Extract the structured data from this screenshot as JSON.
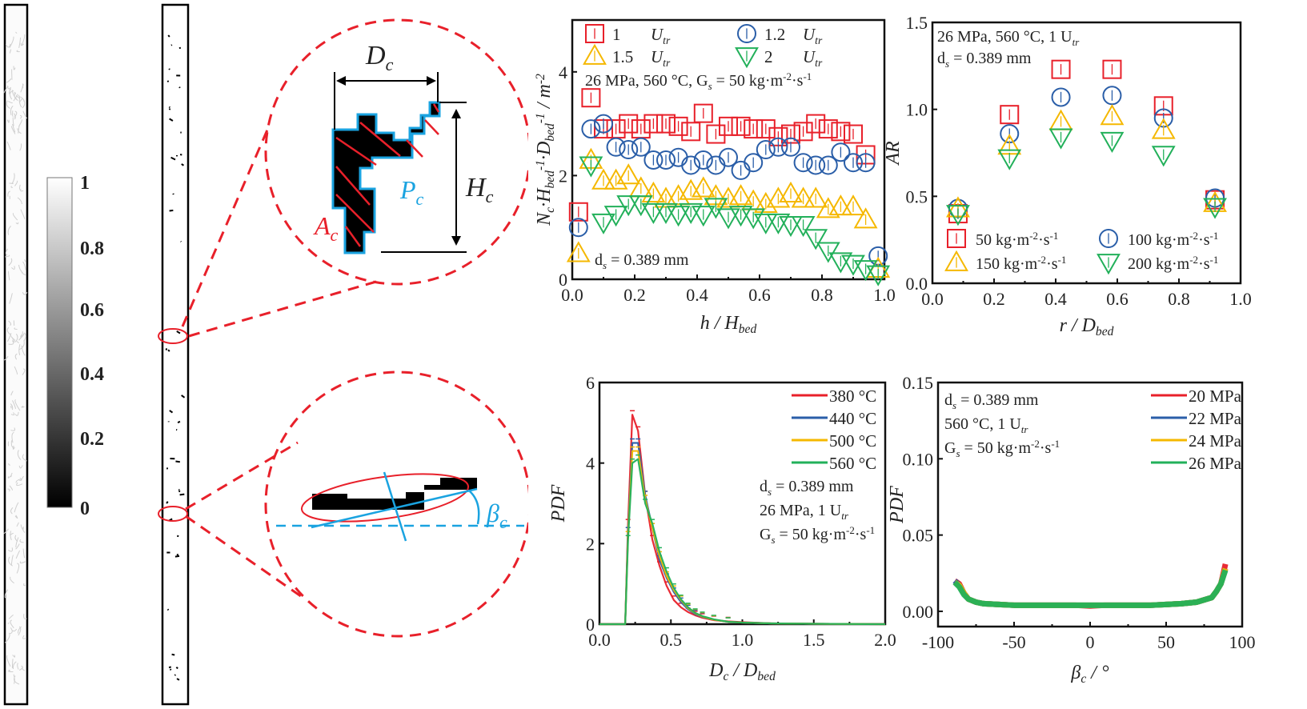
{
  "colorbar": {
    "ticks": [
      "1",
      "0.8",
      "0.6",
      "0.4",
      "0.2",
      "0"
    ],
    "range": [
      0,
      1
    ]
  },
  "schematic": {
    "top": {
      "width_label": "D",
      "width_sub": "c",
      "height_label": "H",
      "height_sub": "c",
      "perimeter_label": "P",
      "perimeter_sub": "c",
      "area_label": "A",
      "area_sub": "c"
    },
    "bottom": {
      "angle_label": "β",
      "angle_sub": "c"
    }
  },
  "colors": {
    "red": "#e8202a",
    "blue": "#2a5ea8",
    "yellow": "#f5b800",
    "green": "#22b05a",
    "cyan": "#1aa3e0"
  },
  "chart_data": [
    {
      "type": "scatter",
      "id": "nc",
      "xlabel": "h / H_bed",
      "ylabel": "N_c·H_bed^-1·D_bed^-1 / m^-2",
      "xlim": [
        0,
        1.0
      ],
      "ylim": [
        0,
        5
      ],
      "xticks": [
        "0.0",
        "0.2",
        "0.4",
        "0.6",
        "0.8",
        "1.0"
      ],
      "yticks": [
        "0",
        "2",
        "4"
      ],
      "annotations": [
        "26 MPa, 560 °C, G_s = 50 kg·m^-2·s^-1",
        "d_s = 0.389 mm"
      ],
      "legend": [
        "1  U_tr",
        "1.2  U_tr",
        "1.5  U_tr",
        "2  U_tr"
      ],
      "x": [
        0.02,
        0.06,
        0.1,
        0.14,
        0.18,
        0.22,
        0.26,
        0.3,
        0.34,
        0.38,
        0.42,
        0.46,
        0.5,
        0.54,
        0.58,
        0.62,
        0.66,
        0.7,
        0.74,
        0.78,
        0.82,
        0.86,
        0.9,
        0.94,
        0.98
      ],
      "series": [
        {
          "name": "1 U_tr",
          "marker": "square",
          "color": "red",
          "values": [
            1.3,
            3.5,
            2.9,
            2.9,
            3.0,
            2.9,
            3.0,
            3.0,
            2.95,
            2.85,
            3.2,
            2.8,
            2.95,
            2.95,
            2.9,
            2.9,
            2.75,
            2.8,
            2.85,
            3.0,
            2.9,
            2.85,
            2.8,
            2.4,
            null
          ]
        },
        {
          "name": "1.2 U_tr",
          "marker": "circle",
          "color": "blue",
          "values": [
            1.0,
            2.9,
            3.0,
            2.55,
            2.5,
            2.55,
            2.3,
            2.3,
            2.35,
            2.2,
            2.3,
            2.2,
            2.35,
            2.1,
            2.25,
            2.5,
            2.55,
            2.55,
            2.25,
            2.2,
            2.2,
            2.45,
            2.25,
            2.25,
            0.45
          ]
        },
        {
          "name": "1.5 U_tr",
          "marker": "triangle-up",
          "color": "yellow",
          "values": [
            0.5,
            2.3,
            1.9,
            1.9,
            2.0,
            1.75,
            1.65,
            1.55,
            1.6,
            1.7,
            1.75,
            1.6,
            1.55,
            1.6,
            1.5,
            1.45,
            1.55,
            1.65,
            1.55,
            1.55,
            1.35,
            1.4,
            1.4,
            1.15,
            0.2
          ]
        },
        {
          "name": "2 U_tr",
          "marker": "triangle-down",
          "color": "green",
          "values": [
            null,
            2.2,
            1.1,
            1.25,
            1.45,
            1.45,
            1.3,
            1.3,
            1.25,
            1.3,
            1.25,
            1.4,
            1.2,
            1.25,
            1.2,
            1.1,
            1.1,
            1.05,
            1.05,
            0.8,
            0.55,
            0.35,
            0.3,
            0.2,
            0.1
          ]
        }
      ]
    },
    {
      "type": "scatter",
      "id": "ar",
      "xlabel": "r / D_bed",
      "ylabel": "AR",
      "xlim": [
        0,
        1.0
      ],
      "ylim": [
        0,
        1.5
      ],
      "xticks": [
        "0.0",
        "0.2",
        "0.4",
        "0.6",
        "0.8",
        "1.0"
      ],
      "yticks": [
        "0.0",
        "0.5",
        "1.0",
        "1.5"
      ],
      "annotations": [
        "26 MPa, 560 °C, 1 U_tr",
        "d_s = 0.389 mm"
      ],
      "legend": [
        "50   kg·m^-2·s^-1",
        "100 kg·m^-2·s^-1",
        "150 kg·m^-2·s^-1",
        "200 kg·m^-2·s^-1"
      ],
      "x": [
        0.083,
        0.25,
        0.417,
        0.583,
        0.75,
        0.917
      ],
      "series": [
        {
          "name": "50 kg·m^-2·s^-1",
          "marker": "square",
          "color": "red",
          "values": [
            0.4,
            0.97,
            1.23,
            1.23,
            1.02,
            0.48
          ]
        },
        {
          "name": "100 kg·m^-2·s^-1",
          "marker": "circle",
          "color": "blue",
          "values": [
            0.43,
            0.86,
            1.07,
            1.08,
            0.95,
            0.49
          ]
        },
        {
          "name": "150 kg·m^-2·s^-1",
          "marker": "triangle-up",
          "color": "yellow",
          "values": [
            0.43,
            0.79,
            0.93,
            0.96,
            0.88,
            0.46
          ]
        },
        {
          "name": "200 kg·m^-2·s^-1",
          "marker": "triangle-down",
          "color": "green",
          "values": [
            0.4,
            0.72,
            0.84,
            0.82,
            0.74,
            0.44
          ]
        }
      ]
    },
    {
      "type": "line",
      "id": "pdfd",
      "xlabel": "D_c / D_bed",
      "ylabel": "PDF",
      "xlim": [
        0,
        2.0
      ],
      "ylim": [
        0,
        6
      ],
      "xticks": [
        "0.0",
        "0.5",
        "1.0",
        "1.5",
        "2.0"
      ],
      "yticks": [
        "0",
        "2",
        "4",
        "6"
      ],
      "annotations": [
        "d_s = 0.389 mm",
        "26 MPa, 1 U_tr",
        "G_s = 50 kg·m^-2·s^-1"
      ],
      "legend": [
        "380 °C",
        "440 °C",
        "500 °C",
        "560 °C"
      ],
      "x": [
        0,
        0.18,
        0.2,
        0.23,
        0.27,
        0.32,
        0.37,
        0.42,
        0.47,
        0.52,
        0.57,
        0.62,
        0.67,
        0.72,
        0.8,
        0.9,
        1.0,
        1.2,
        1.5,
        2.0
      ],
      "series": [
        {
          "name": "380 °C",
          "color": "red",
          "values": [
            0,
            0,
            2.5,
            5.2,
            4.8,
            3.2,
            2.1,
            1.45,
            0.95,
            0.6,
            0.42,
            0.3,
            0.22,
            0.16,
            0.1,
            0.07,
            0.05,
            0.02,
            0.01,
            0
          ]
        },
        {
          "name": "440 °C",
          "color": "blue",
          "values": [
            0,
            0,
            2.3,
            4.5,
            4.5,
            3.2,
            2.4,
            1.6,
            1.15,
            0.8,
            0.55,
            0.37,
            0.25,
            0.18,
            0.11,
            0.06,
            0.04,
            0.02,
            0.01,
            0
          ]
        },
        {
          "name": "500 °C",
          "color": "yellow",
          "values": [
            0,
            0,
            2.2,
            4.3,
            4.3,
            3.1,
            2.4,
            1.7,
            1.2,
            0.85,
            0.6,
            0.4,
            0.27,
            0.19,
            0.11,
            0.06,
            0.04,
            0.02,
            0.01,
            0
          ]
        },
        {
          "name": "560 °C",
          "color": "green",
          "values": [
            0,
            0,
            2.1,
            4.0,
            4.1,
            3.0,
            2.5,
            1.8,
            1.3,
            0.9,
            0.62,
            0.42,
            0.28,
            0.2,
            0.12,
            0.06,
            0.04,
            0.02,
            0.01,
            0
          ]
        }
      ]
    },
    {
      "type": "line",
      "id": "pdfb",
      "xlabel": "β_c / °",
      "ylabel": "PDF",
      "xlim": [
        -100,
        100
      ],
      "ylim": [
        -0.01,
        0.15
      ],
      "xticks": [
        "-100",
        "-50",
        "0",
        "50",
        "100"
      ],
      "yticks": [
        "0.00",
        "0.05",
        "0.10",
        "0.15"
      ],
      "annotations": [
        "d_s = 0.389 mm",
        "560 °C, 1 U_tr",
        "G_s = 50 kg·m^-2·s^-1"
      ],
      "legend": [
        "20 MPa",
        "22 MPa",
        "24 MPa",
        "26 MPa"
      ],
      "x": [
        -89,
        -86,
        -83,
        -80,
        -75,
        -70,
        -60,
        -50,
        -40,
        -30,
        -20,
        -10,
        0,
        10,
        20,
        30,
        40,
        50,
        60,
        70,
        75,
        80,
        83,
        86,
        89
      ],
      "series": [
        {
          "name": "20 MPa",
          "color": "red",
          "values": [
            0.02,
            0.018,
            0.012,
            0.008,
            0.006,
            0.005,
            0.0045,
            0.004,
            0.004,
            0.004,
            0.004,
            0.004,
            0.0035,
            0.004,
            0.004,
            0.004,
            0.004,
            0.0045,
            0.005,
            0.006,
            0.0075,
            0.009,
            0.013,
            0.018,
            0.031
          ]
        },
        {
          "name": "22 MPa",
          "color": "blue",
          "values": [
            0.02,
            0.017,
            0.012,
            0.008,
            0.006,
            0.005,
            0.0045,
            0.004,
            0.004,
            0.004,
            0.004,
            0.004,
            0.004,
            0.004,
            0.004,
            0.004,
            0.004,
            0.0045,
            0.005,
            0.006,
            0.0075,
            0.009,
            0.013,
            0.018,
            0.028
          ]
        },
        {
          "name": "24 MPa",
          "color": "yellow",
          "values": [
            0.019,
            0.017,
            0.012,
            0.008,
            0.006,
            0.005,
            0.0045,
            0.004,
            0.004,
            0.004,
            0.004,
            0.004,
            0.004,
            0.004,
            0.004,
            0.004,
            0.004,
            0.0045,
            0.005,
            0.006,
            0.0075,
            0.009,
            0.013,
            0.018,
            0.028
          ]
        },
        {
          "name": "26 MPa",
          "color": "green",
          "values": [
            0.019,
            0.016,
            0.011,
            0.008,
            0.006,
            0.005,
            0.0045,
            0.004,
            0.004,
            0.004,
            0.004,
            0.004,
            0.004,
            0.004,
            0.004,
            0.004,
            0.004,
            0.0045,
            0.005,
            0.006,
            0.0075,
            0.009,
            0.013,
            0.018,
            0.027
          ]
        }
      ]
    }
  ]
}
